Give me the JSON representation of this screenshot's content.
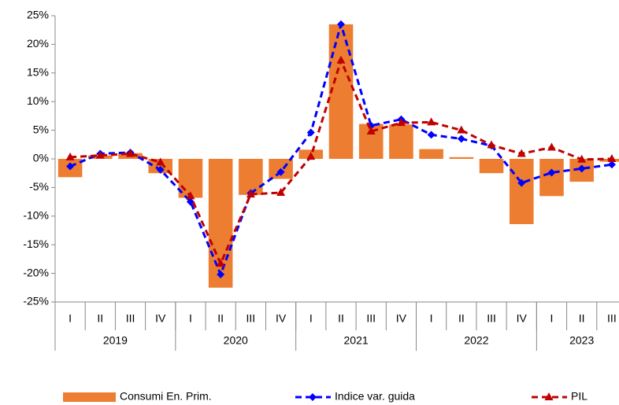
{
  "chart_data": {
    "type": "bar-line",
    "categories": [
      "I",
      "II",
      "III",
      "IV",
      "I",
      "II",
      "III",
      "IV",
      "I",
      "II",
      "III",
      "IV",
      "I",
      "II",
      "III",
      "IV",
      "I",
      "II",
      "III"
    ],
    "groups": [
      {
        "name": "2019",
        "size": 4
      },
      {
        "name": "2020",
        "size": 4
      },
      {
        "name": "2021",
        "size": 4
      },
      {
        "name": "2022",
        "size": 4
      },
      {
        "name": "2023",
        "size": 3
      }
    ],
    "series": [
      {
        "name": "Consumi En. Prim.",
        "type": "bar",
        "color": "#ed7d31",
        "values": [
          -3.2,
          0.6,
          1.0,
          -2.5,
          -6.8,
          -22.5,
          -6.3,
          -3.5,
          1.6,
          23.5,
          6.1,
          6.0,
          1.7,
          0.3,
          -2.5,
          -11.4,
          -6.5,
          -4.0,
          -0.5
        ]
      },
      {
        "name": "Indice var. guida",
        "type": "line",
        "color": "#0000ff",
        "marker": "diamond",
        "values": [
          -1.3,
          0.9,
          1.1,
          -1.9,
          -7.5,
          -20.2,
          -6.0,
          -2.3,
          4.6,
          23.5,
          5.8,
          6.9,
          4.2,
          3.5,
          2.3,
          -4.2,
          -2.4,
          -1.7,
          -1.0
        ]
      },
      {
        "name": "PIL",
        "type": "line",
        "color": "#c00000",
        "marker": "triangle",
        "values": [
          0.3,
          0.6,
          0.9,
          -0.6,
          -6.5,
          -18.3,
          -6.2,
          -5.9,
          0.4,
          17.2,
          4.8,
          6.3,
          6.4,
          5.0,
          2.4,
          0.9,
          2.0,
          -0.1,
          0.0
        ]
      }
    ],
    "ylim": [
      -25,
      25
    ],
    "yticks": [
      {
        "value": -25,
        "label": "-25%"
      },
      {
        "value": -20,
        "label": "-20%"
      },
      {
        "value": -15,
        "label": "-15%"
      },
      {
        "value": -10,
        "label": "-10%"
      },
      {
        "value": -5,
        "label": "-5%"
      },
      {
        "value": 0,
        "label": "0%"
      },
      {
        "value": 5,
        "label": "5%"
      },
      {
        "value": 10,
        "label": "10%"
      },
      {
        "value": 15,
        "label": "15%"
      },
      {
        "value": 20,
        "label": "20%"
      },
      {
        "value": 25,
        "label": "25%"
      }
    ],
    "grid": false
  }
}
